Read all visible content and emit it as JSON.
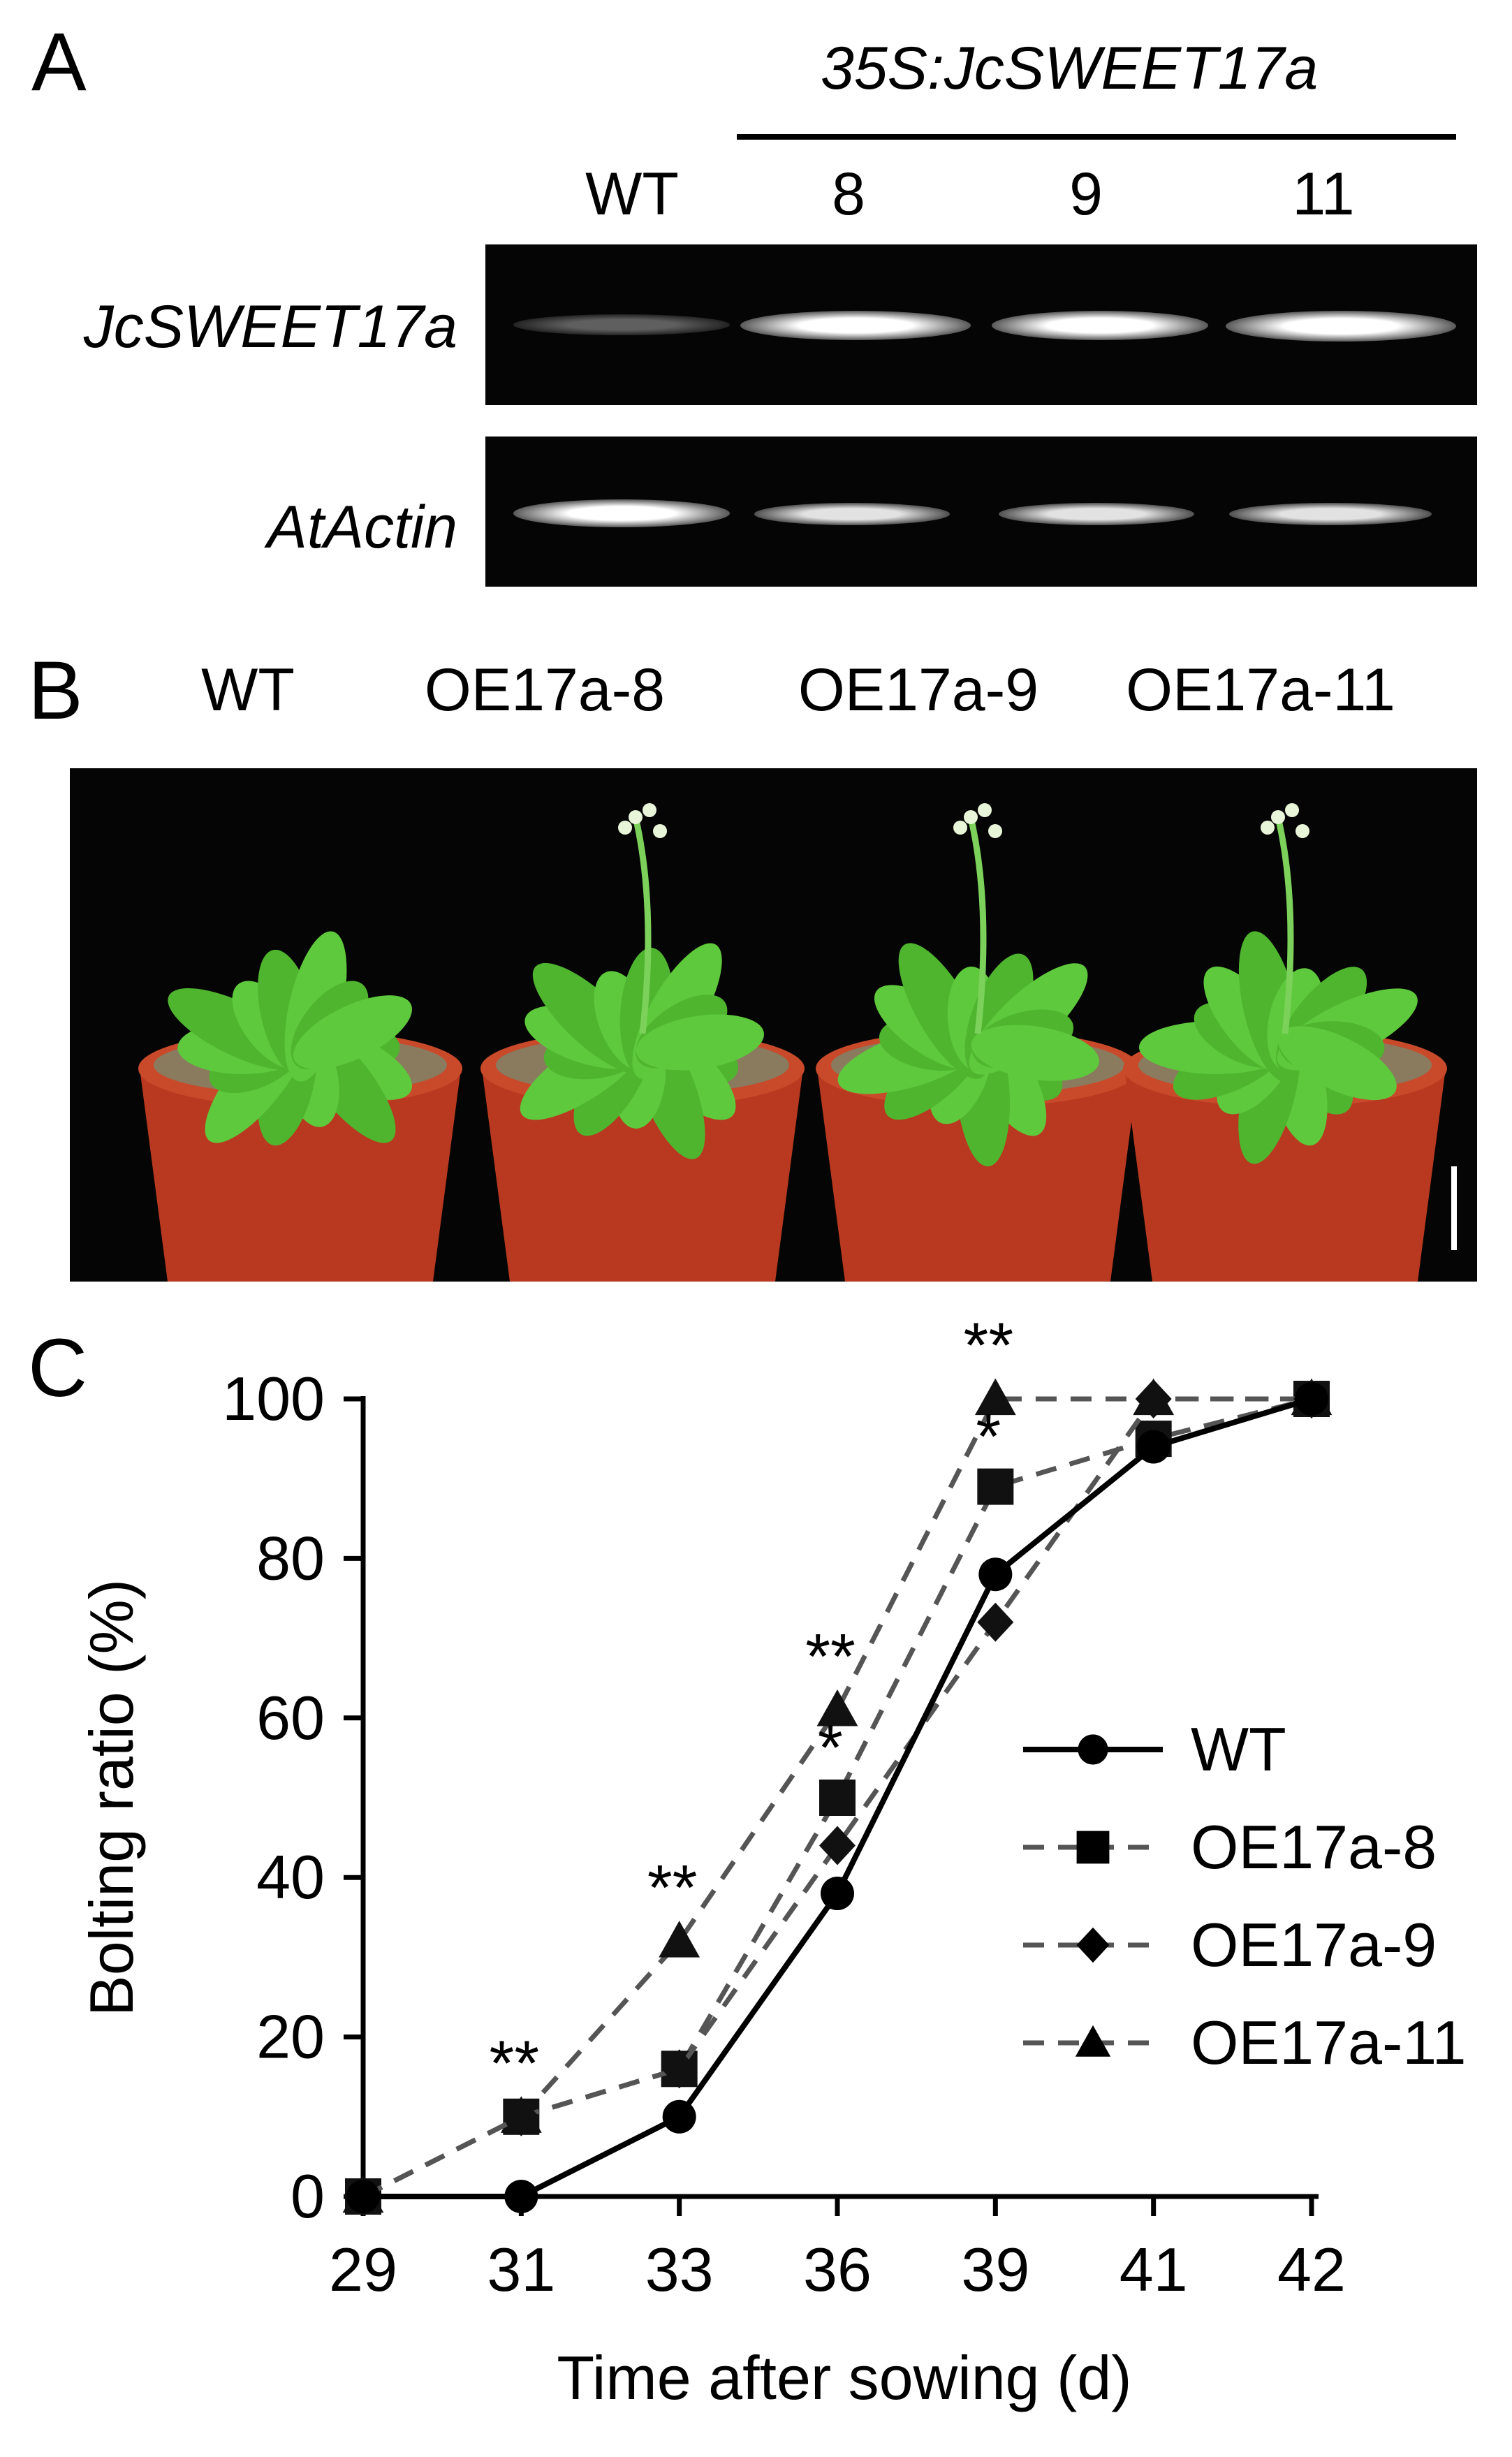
{
  "panelA": {
    "letter": "A",
    "construct": "35S:JcSWEET17a",
    "lanes": [
      "WT",
      "8",
      "9",
      "11"
    ],
    "genes": [
      {
        "name": "JcSWEET17a",
        "intensity": [
          0.18,
          1.0,
          1.0,
          1.0
        ]
      },
      {
        "name": "AtActin",
        "intensity": [
          1.0,
          0.85,
          0.85,
          0.85
        ]
      }
    ]
  },
  "panelB": {
    "letter": "B",
    "labels": [
      "WT",
      "OE17a-8",
      "OE17a-9",
      "OE17a-11"
    ],
    "colors": {
      "background": "#050505",
      "pot": "#b8391f",
      "leaf": "#5ec93c",
      "soil": "#8a7a5e"
    }
  },
  "panelC": {
    "letter": "C"
  },
  "chart_data": {
    "type": "line",
    "xlabel": "Time after sowing (d)",
    "ylabel": "Bolting ratio (%)",
    "categories": [
      "29",
      "31",
      "33",
      "36",
      "39",
      "41",
      "42"
    ],
    "ylim": [
      0,
      100
    ],
    "yticks": [
      "0",
      "20",
      "40",
      "60",
      "80",
      "100"
    ],
    "legend_position": "center-right",
    "series": [
      {
        "name": "WT",
        "marker": "circle",
        "dash": "solid",
        "color": "#000000",
        "values": [
          0,
          0,
          10,
          38,
          78,
          94,
          100
        ]
      },
      {
        "name": "OE17a-8",
        "marker": "square",
        "dash": "dashed",
        "color": "#555555",
        "values": [
          0,
          10,
          16,
          50,
          89,
          95,
          100
        ]
      },
      {
        "name": "OE17a-9",
        "marker": "diamond",
        "dash": "dashed",
        "color": "#555555",
        "values": [
          0,
          10,
          16,
          44,
          72,
          100,
          100
        ]
      },
      {
        "name": "OE17a-11",
        "marker": "triangle",
        "dash": "dashed",
        "color": "#555555",
        "values": [
          0,
          10,
          32,
          61,
          100,
          100,
          100
        ]
      }
    ],
    "annotations": [
      {
        "text": "**",
        "x": "31",
        "y": 10
      },
      {
        "text": "**",
        "x": "33",
        "y": 32
      },
      {
        "text": "**",
        "x": "36",
        "y": 61
      },
      {
        "text": "*",
        "x": "36",
        "y": 50
      },
      {
        "text": "**",
        "x": "39",
        "y": 100
      },
      {
        "text": "*",
        "x": "39",
        "y": 89
      }
    ]
  }
}
